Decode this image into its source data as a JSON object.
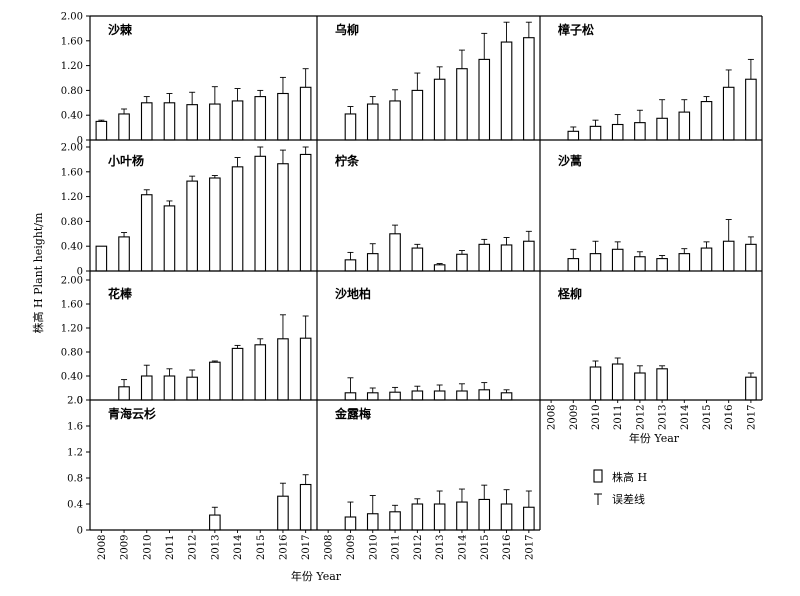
{
  "ylabel": "株高 H Plant height/m",
  "xlabel": "年份 Year",
  "legend": {
    "bar_label": "株高 H",
    "error_label": "误差线"
  },
  "chart_data": {
    "type": "bar",
    "categories": [
      "2008",
      "2009",
      "2010",
      "2011",
      "2012",
      "2013",
      "2014",
      "2015",
      "2016",
      "2017"
    ],
    "ylim": [
      0,
      2.0
    ],
    "grid": false,
    "legend_position": "bottom-right",
    "panels": [
      {
        "title": "沙棘",
        "ytick_labels": [
          "0",
          "0.40",
          "0.80",
          "1.20",
          "1.60",
          "2.00"
        ],
        "values": [
          0.3,
          0.42,
          0.6,
          0.6,
          0.57,
          0.58,
          0.63,
          0.7,
          0.75,
          0.85
        ],
        "errors": [
          0.02,
          0.08,
          0.1,
          0.15,
          0.2,
          0.28,
          0.2,
          0.1,
          0.26,
          0.3
        ]
      },
      {
        "title": "乌柳",
        "values": [
          null,
          0.42,
          0.58,
          0.63,
          0.8,
          0.98,
          1.15,
          1.3,
          1.58,
          1.65
        ],
        "errors": [
          null,
          0.12,
          0.12,
          0.18,
          0.28,
          0.2,
          0.3,
          0.42,
          0.32,
          0.25
        ]
      },
      {
        "title": "樟子松",
        "values": [
          null,
          0.14,
          0.22,
          0.25,
          0.28,
          0.35,
          0.45,
          0.62,
          0.85,
          0.98
        ],
        "errors": [
          null,
          0.07,
          0.1,
          0.16,
          0.2,
          0.3,
          0.2,
          0.08,
          0.28,
          0.32
        ]
      },
      {
        "title": "小叶杨",
        "ytick_labels": [
          "0",
          "0.40",
          "0.80",
          "1.20",
          "1.60",
          "2.00"
        ],
        "values": [
          0.4,
          0.55,
          1.23,
          1.05,
          1.45,
          1.5,
          1.68,
          1.85,
          1.73,
          1.88
        ],
        "errors": [
          0.0,
          0.07,
          0.08,
          0.08,
          0.08,
          0.04,
          0.15,
          0.3,
          0.22,
          0.15
        ]
      },
      {
        "title": "柠条",
        "values": [
          null,
          0.18,
          0.28,
          0.6,
          0.37,
          0.1,
          0.27,
          0.43,
          0.42,
          0.48
        ],
        "errors": [
          null,
          0.12,
          0.16,
          0.14,
          0.06,
          0.02,
          0.06,
          0.08,
          0.12,
          0.16
        ]
      },
      {
        "title": "沙蒿",
        "values": [
          null,
          0.2,
          0.28,
          0.35,
          0.23,
          0.2,
          0.28,
          0.37,
          0.48,
          0.43
        ],
        "errors": [
          null,
          0.15,
          0.2,
          0.12,
          0.08,
          0.05,
          0.08,
          0.1,
          0.35,
          0.12
        ]
      },
      {
        "title": "花棒",
        "ytick_labels": [
          "0",
          "0.40",
          "0.80",
          "1.20",
          "1.60",
          "2.00"
        ],
        "values": [
          null,
          0.22,
          0.4,
          0.4,
          0.38,
          0.63,
          0.86,
          0.92,
          1.02,
          1.03
        ],
        "errors": [
          null,
          0.12,
          0.18,
          0.12,
          0.12,
          0.02,
          0.05,
          0.1,
          0.4,
          0.37
        ]
      },
      {
        "title": "沙地柏",
        "values": [
          null,
          0.12,
          0.12,
          0.13,
          0.15,
          0.15,
          0.15,
          0.17,
          0.12,
          null
        ],
        "errors": [
          null,
          0.25,
          0.08,
          0.08,
          0.08,
          0.1,
          0.12,
          0.12,
          0.05,
          null
        ]
      },
      {
        "title": "柽柳",
        "values": [
          null,
          null,
          0.55,
          0.6,
          0.45,
          0.52,
          null,
          null,
          null,
          0.38
        ],
        "errors": [
          null,
          null,
          0.1,
          0.1,
          0.12,
          0.05,
          null,
          null,
          null,
          0.07
        ]
      },
      {
        "title": "青海云杉",
        "ytick_labels": [
          "0",
          "0.4",
          "0.8",
          "1.2",
          "1.6",
          "2.0"
        ],
        "values": [
          null,
          null,
          null,
          null,
          null,
          0.23,
          null,
          null,
          0.52,
          0.7
        ],
        "errors": [
          null,
          null,
          null,
          null,
          null,
          0.12,
          null,
          null,
          0.2,
          0.15
        ]
      },
      {
        "title": "金露梅",
        "values": [
          null,
          0.2,
          0.25,
          0.28,
          0.4,
          0.4,
          0.43,
          0.47,
          0.4,
          0.35
        ],
        "errors": [
          null,
          0.23,
          0.28,
          0.1,
          0.08,
          0.2,
          0.2,
          0.22,
          0.22,
          0.25
        ]
      }
    ]
  }
}
